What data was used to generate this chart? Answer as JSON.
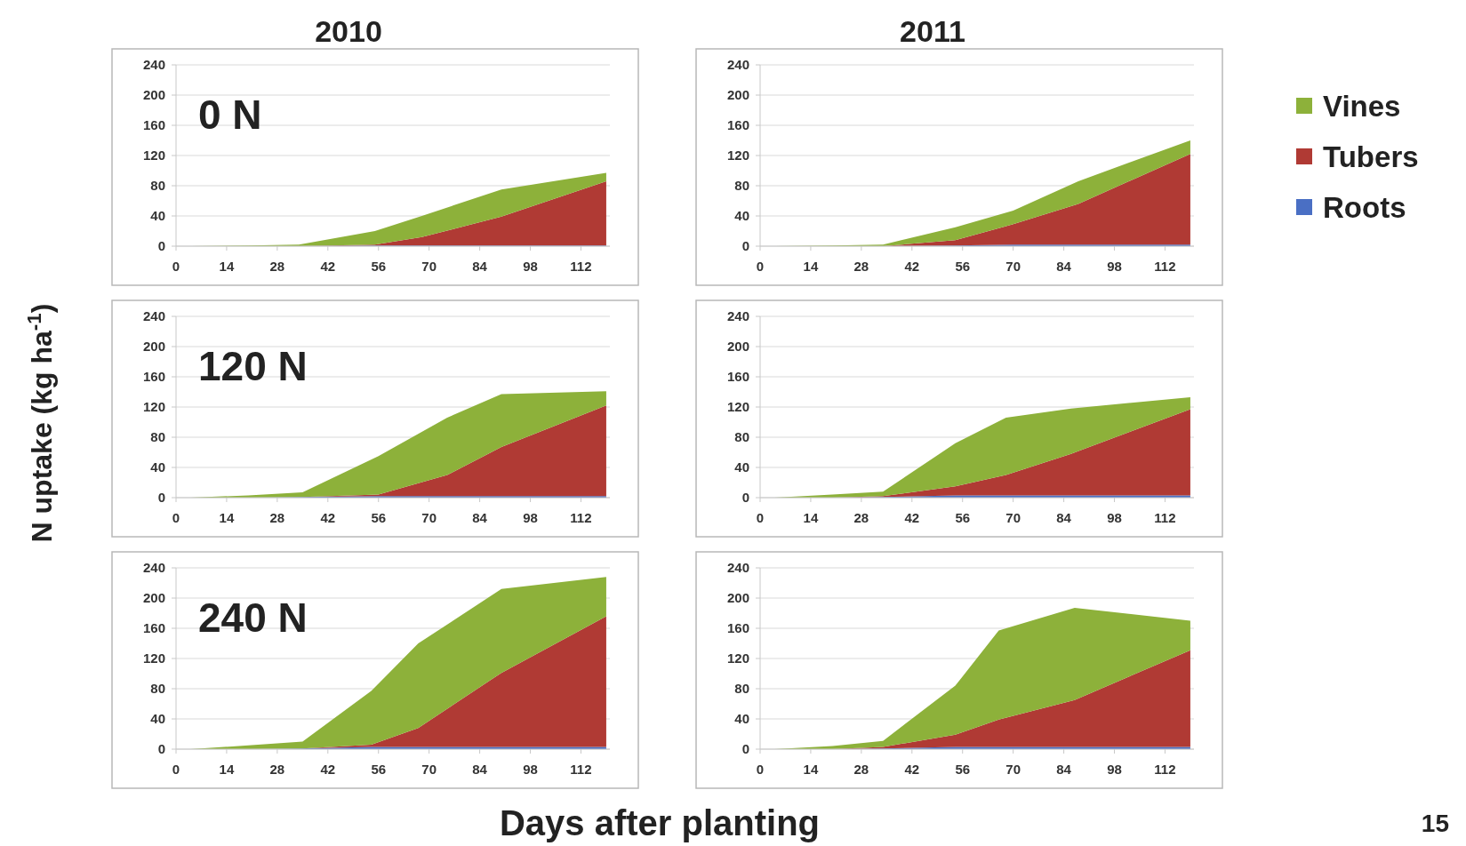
{
  "chart_data": [
    {
      "type": "area",
      "stacked": true,
      "title": "2010",
      "annotations": [
        "0 N"
      ],
      "xlim": [
        0,
        120
      ],
      "xticks": [
        0,
        14,
        28,
        42,
        56,
        70,
        84,
        98,
        112
      ],
      "ylim": [
        0,
        240
      ],
      "yticks": [
        0,
        40,
        80,
        120,
        160,
        200,
        240
      ],
      "grid": "y",
      "series": [
        {
          "color": "#4a6fc4",
          "x": [
            4,
            20,
            34,
            55,
            68,
            90,
            119
          ],
          "values": [
            0,
            0,
            0,
            1,
            1,
            1,
            1
          ]
        },
        {
          "color": "#b03a34",
          "x": [
            4,
            20,
            34,
            55,
            68,
            90,
            119
          ],
          "values": [
            0,
            0,
            0,
            1,
            11,
            38,
            85
          ]
        },
        {
          "color": "#8db13a",
          "x": [
            4,
            20,
            34,
            55,
            68,
            90,
            119
          ],
          "values": [
            0,
            1,
            2,
            18,
            28,
            36,
            11
          ]
        }
      ]
    },
    {
      "type": "area",
      "stacked": true,
      "title": "2011",
      "legend": "right",
      "xlim": [
        0,
        120
      ],
      "xticks": [
        0,
        14,
        28,
        42,
        56,
        70,
        84,
        98,
        112
      ],
      "ylim": [
        0,
        240
      ],
      "yticks": [
        0,
        40,
        80,
        120,
        160,
        200,
        240
      ],
      "grid": "y",
      "series": [
        {
          "name": "Roots",
          "color": "#4a6fc4",
          "x": [
            4,
            20,
            34,
            54,
            70,
            88,
            119
          ],
          "values": [
            0,
            0,
            0,
            1,
            2,
            2,
            2
          ]
        },
        {
          "name": "Tubers",
          "color": "#b03a34",
          "x": [
            4,
            20,
            34,
            54,
            70,
            88,
            119
          ],
          "values": [
            0,
            0,
            0,
            7,
            27,
            54,
            120
          ]
        },
        {
          "name": "Vines",
          "color": "#8db13a",
          "x": [
            4,
            20,
            34,
            54,
            70,
            88,
            119
          ],
          "values": [
            0,
            1,
            2,
            17,
            18,
            30,
            18
          ]
        }
      ]
    },
    {
      "type": "area",
      "stacked": true,
      "ylabel": "N uptake (kg ha$^{-1}$)",
      "annotations": [
        "120 N"
      ],
      "xlim": [
        0,
        120
      ],
      "xticks": [
        0,
        14,
        28,
        42,
        56,
        70,
        84,
        98,
        112
      ],
      "ylim": [
        0,
        240
      ],
      "yticks": [
        0,
        40,
        80,
        120,
        160,
        200,
        240
      ],
      "grid": "y",
      "series": [
        {
          "color": "#4a6fc4",
          "x": [
            4,
            20,
            35,
            56,
            75,
            90,
            119
          ],
          "values": [
            0,
            0,
            1,
            2,
            2,
            2,
            2
          ]
        },
        {
          "color": "#b03a34",
          "x": [
            4,
            20,
            35,
            56,
            75,
            90,
            119
          ],
          "values": [
            0,
            0,
            0,
            2,
            28,
            65,
            120
          ]
        },
        {
          "color": "#8db13a",
          "x": [
            4,
            20,
            35,
            56,
            75,
            90,
            119
          ],
          "values": [
            0,
            3,
            6,
            51,
            76,
            70,
            19
          ]
        }
      ]
    },
    {
      "type": "area",
      "stacked": true,
      "xlim": [
        0,
        120
      ],
      "xticks": [
        0,
        14,
        28,
        42,
        56,
        70,
        84,
        98,
        112
      ],
      "ylim": [
        0,
        240
      ],
      "yticks": [
        0,
        40,
        80,
        120,
        160,
        200,
        240
      ],
      "grid": "y",
      "series": [
        {
          "color": "#4a6fc4",
          "x": [
            4,
            20,
            34,
            54,
            68,
            86,
            119
          ],
          "values": [
            0,
            0,
            1,
            3,
            3,
            3,
            3
          ]
        },
        {
          "color": "#b03a34",
          "x": [
            4,
            20,
            34,
            54,
            68,
            86,
            119
          ],
          "values": [
            0,
            0,
            1,
            12,
            27,
            55,
            114
          ]
        },
        {
          "color": "#8db13a",
          "x": [
            4,
            20,
            34,
            54,
            68,
            86,
            119
          ],
          "values": [
            0,
            4,
            6,
            57,
            76,
            60,
            16
          ]
        }
      ]
    },
    {
      "type": "area",
      "stacked": true,
      "xlabel": "Days after planting",
      "annotations": [
        "240 N"
      ],
      "xlim": [
        0,
        120
      ],
      "xticks": [
        0,
        14,
        28,
        42,
        56,
        70,
        84,
        98,
        112
      ],
      "ylim": [
        0,
        240
      ],
      "yticks": [
        0,
        40,
        80,
        120,
        160,
        200,
        240
      ],
      "grid": "y",
      "series": [
        {
          "color": "#4a6fc4",
          "x": [
            4,
            20,
            35,
            54,
            67,
            90,
            119
          ],
          "values": [
            0,
            0,
            1,
            3,
            3,
            3,
            3
          ]
        },
        {
          "color": "#b03a34",
          "x": [
            4,
            20,
            35,
            54,
            67,
            90,
            119
          ],
          "values": [
            0,
            0,
            0,
            3,
            25,
            98,
            173
          ]
        },
        {
          "color": "#8db13a",
          "x": [
            4,
            20,
            35,
            54,
            67,
            90,
            119
          ],
          "values": [
            0,
            5,
            9,
            71,
            112,
            111,
            52
          ]
        }
      ]
    },
    {
      "type": "area",
      "stacked": true,
      "annotations": [
        "15"
      ],
      "xlim": [
        0,
        120
      ],
      "xticks": [
        0,
        14,
        28,
        42,
        56,
        70,
        84,
        98,
        112
      ],
      "ylim": [
        0,
        240
      ],
      "yticks": [
        0,
        40,
        80,
        120,
        160,
        200,
        240
      ],
      "grid": "y",
      "series": [
        {
          "color": "#4a6fc4",
          "x": [
            4,
            20,
            34,
            54,
            66,
            87,
            119
          ],
          "values": [
            0,
            0,
            1,
            3,
            3,
            3,
            3
          ]
        },
        {
          "color": "#b03a34",
          "x": [
            4,
            20,
            34,
            54,
            66,
            87,
            119
          ],
          "values": [
            0,
            0,
            2,
            16,
            36,
            62,
            128
          ]
        },
        {
          "color": "#8db13a",
          "x": [
            4,
            20,
            34,
            54,
            66,
            87,
            119
          ],
          "values": [
            0,
            4,
            8,
            65,
            118,
            122,
            39
          ]
        }
      ]
    }
  ]
}
